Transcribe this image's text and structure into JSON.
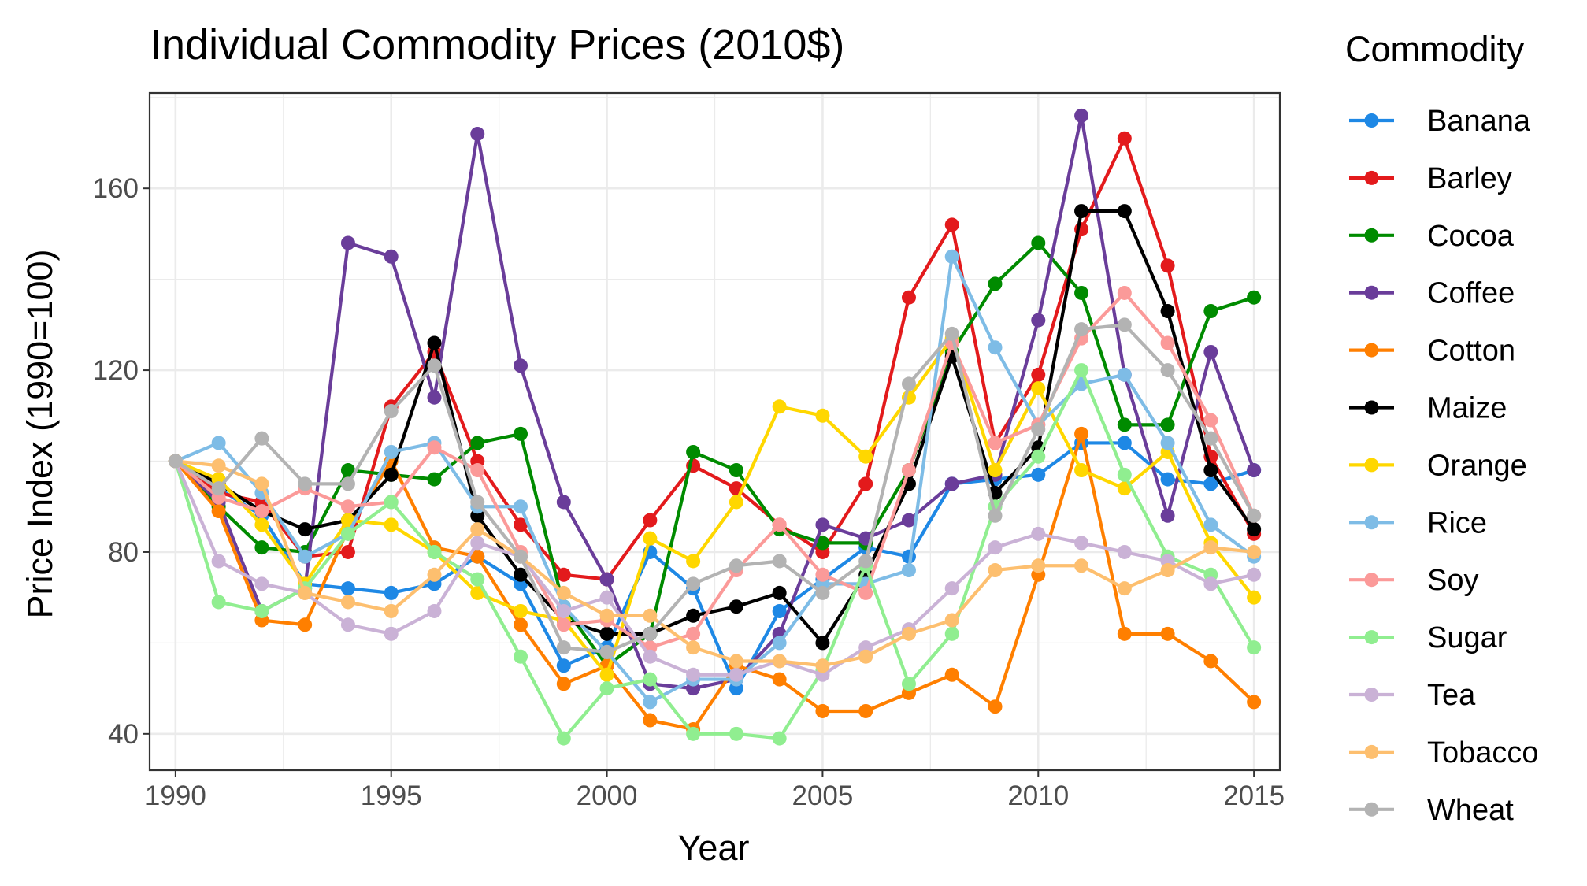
{
  "chart_data": {
    "type": "line",
    "title": "Individual Commodity Prices (2010$)",
    "xlabel": "Year",
    "ylabel": "Price Index (1990=100)",
    "xlim": [
      1989.4,
      2015.6
    ],
    "ylim": [
      32,
      181
    ],
    "x_ticks": [
      1990,
      1995,
      2000,
      2005,
      2010,
      2015
    ],
    "y_ticks": [
      40,
      80,
      120,
      160
    ],
    "grid": true,
    "legend_title": "Commodity",
    "legend_position": "right",
    "x": [
      1990,
      1991,
      1992,
      1993,
      1994,
      1995,
      1996,
      1997,
      1998,
      1999,
      2000,
      2001,
      2002,
      2003,
      2004,
      2005,
      2006,
      2007,
      2008,
      2009,
      2010,
      2011,
      2012,
      2013,
      2014,
      2015
    ],
    "series": [
      {
        "name": "Banana",
        "color": "#1E88E5",
        "values": [
          100,
          94,
          88,
          73,
          72,
          71,
          73,
          79,
          73,
          55,
          59,
          80,
          72,
          50,
          67,
          74,
          81,
          79,
          95,
          96,
          97,
          104,
          104,
          96,
          95,
          98
        ]
      },
      {
        "name": "Barley",
        "color": "#E31A1C",
        "values": [
          100,
          93,
          91,
          79,
          80,
          112,
          124,
          100,
          86,
          75,
          74,
          87,
          99,
          94,
          86,
          80,
          95,
          136,
          152,
          104,
          119,
          151,
          171,
          143,
          101,
          84
        ]
      },
      {
        "name": "Cocoa",
        "color": "#008B00",
        "values": [
          100,
          90,
          81,
          80,
          98,
          97,
          96,
          104,
          106,
          68,
          55,
          62,
          102,
          98,
          85,
          82,
          82,
          98,
          124,
          139,
          148,
          137,
          108,
          108,
          133,
          136
        ]
      },
      {
        "name": "Coffee",
        "color": "#6A3D9A",
        "values": [
          100,
          91,
          67,
          72,
          148,
          145,
          114,
          172,
          121,
          91,
          74,
          51,
          50,
          52,
          62,
          86,
          83,
          87,
          95,
          97,
          131,
          176,
          119,
          88,
          124,
          98
        ]
      },
      {
        "name": "Cotton",
        "color": "#FF7F00",
        "values": [
          100,
          89,
          65,
          64,
          85,
          100,
          81,
          79,
          64,
          51,
          55,
          43,
          41,
          55,
          52,
          45,
          45,
          49,
          53,
          46,
          75,
          106,
          62,
          62,
          56,
          47
        ]
      },
      {
        "name": "Maize",
        "color": "#000000",
        "values": [
          100,
          95,
          89,
          85,
          87,
          97,
          126,
          88,
          75,
          65,
          62,
          62,
          66,
          68,
          71,
          60,
          75,
          95,
          123,
          93,
          103,
          155,
          155,
          133,
          98,
          85
        ]
      },
      {
        "name": "Orange",
        "color": "#FFD700",
        "values": [
          100,
          96,
          86,
          73,
          87,
          86,
          80,
          71,
          67,
          65,
          53,
          83,
          78,
          91,
          112,
          110,
          101,
          114,
          127,
          98,
          116,
          98,
          94,
          102,
          82,
          70
        ]
      },
      {
        "name": "Rice",
        "color": "#7EBCE6",
        "values": [
          100,
          104,
          93,
          79,
          84,
          102,
          104,
          90,
          90,
          68,
          58,
          47,
          52,
          52,
          60,
          73,
          73,
          76,
          145,
          125,
          108,
          117,
          119,
          104,
          86,
          79
        ]
      },
      {
        "name": "Soy",
        "color": "#FB9A99",
        "values": [
          100,
          92,
          89,
          94,
          90,
          91,
          103,
          98,
          80,
          64,
          65,
          59,
          62,
          76,
          86,
          75,
          71,
          98,
          126,
          104,
          108,
          127,
          137,
          126,
          109,
          88
        ]
      },
      {
        "name": "Sugar",
        "color": "#90EE90",
        "values": [
          100,
          69,
          67,
          72,
          84,
          91,
          80,
          74,
          57,
          39,
          50,
          52,
          40,
          40,
          39,
          54,
          77,
          51,
          62,
          90,
          101,
          120,
          97,
          79,
          75,
          59
        ]
      },
      {
        "name": "Tea",
        "color": "#CAB2D6",
        "values": [
          100,
          78,
          73,
          71,
          64,
          62,
          67,
          82,
          79,
          67,
          70,
          57,
          53,
          53,
          56,
          53,
          59,
          63,
          72,
          81,
          84,
          82,
          80,
          78,
          73,
          75
        ]
      },
      {
        "name": "Tobacco",
        "color": "#FDBF6F",
        "values": [
          100,
          99,
          95,
          71,
          69,
          67,
          75,
          85,
          79,
          71,
          66,
          66,
          59,
          56,
          56,
          55,
          57,
          62,
          65,
          76,
          77,
          77,
          72,
          76,
          81,
          80
        ]
      },
      {
        "name": "Wheat",
        "color": "#B3B3B3",
        "values": [
          100,
          94,
          105,
          95,
          95,
          111,
          121,
          91,
          79,
          59,
          58,
          62,
          73,
          77,
          78,
          71,
          78,
          117,
          128,
          88,
          107,
          129,
          130,
          120,
          105,
          88
        ]
      }
    ]
  }
}
